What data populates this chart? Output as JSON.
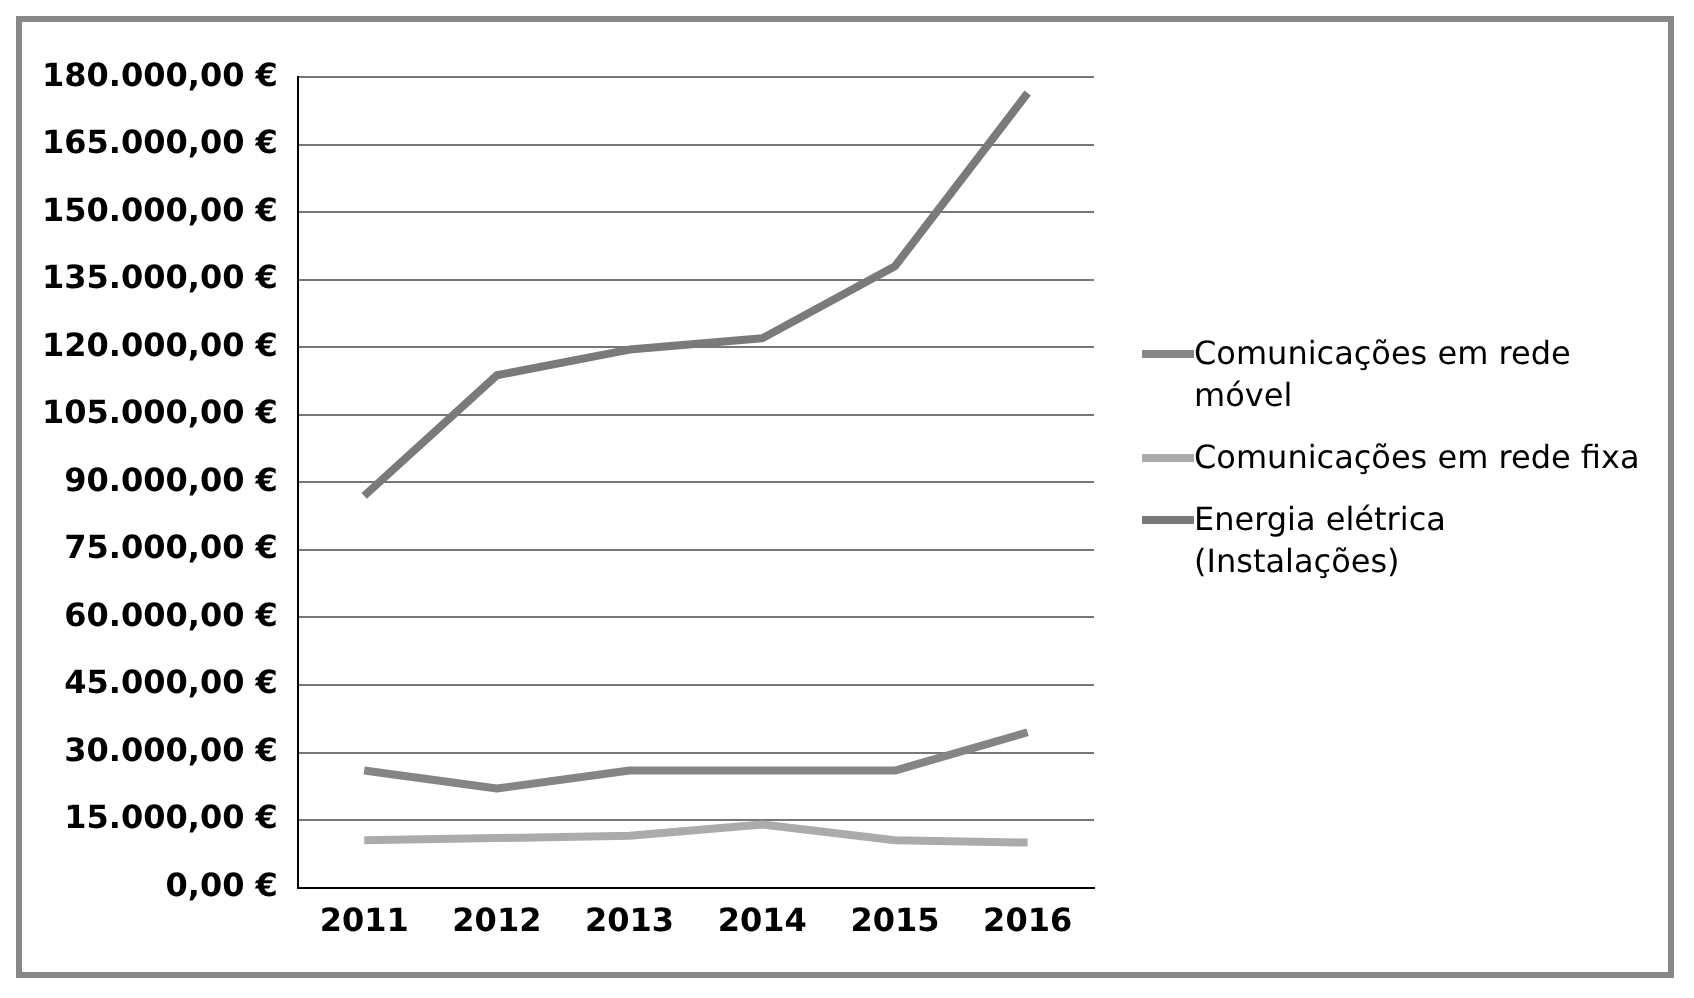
{
  "chart_data": {
    "type": "line",
    "categories": [
      "2011",
      "2012",
      "2013",
      "2014",
      "2015",
      "2016"
    ],
    "series": [
      {
        "name": "Comunicações em rede móvel",
        "color": "#858585",
        "values": [
          26000,
          22000,
          26000,
          26000,
          26000,
          34500
        ]
      },
      {
        "name": "Comunicações em rede fixa",
        "color": "#ababab",
        "values": [
          10500,
          11000,
          11500,
          14000,
          10500,
          10000
        ]
      },
      {
        "name": "Energia elétrica (Instalações)",
        "color": "#7a7a7a",
        "values": [
          87000,
          113800,
          119500,
          122000,
          138000,
          176500
        ]
      }
    ],
    "ylim": [
      0,
      180000
    ],
    "yticks": [
      {
        "value": 0,
        "label": "0,00 €"
      },
      {
        "value": 15000,
        "label": "15.000,00 €"
      },
      {
        "value": 30000,
        "label": "30.000,00 €"
      },
      {
        "value": 45000,
        "label": "45.000,00 €"
      },
      {
        "value": 60000,
        "label": "60.000,00 €"
      },
      {
        "value": 75000,
        "label": "75.000,00 €"
      },
      {
        "value": 90000,
        "label": "90.000,00 €"
      },
      {
        "value": 105000,
        "label": "105.000,00 €"
      },
      {
        "value": 120000,
        "label": "120.000,00 €"
      },
      {
        "value": 135000,
        "label": "135.000,00 €"
      },
      {
        "value": 150000,
        "label": "150.000,00 €"
      },
      {
        "value": 165000,
        "label": "165.000,00 €"
      },
      {
        "value": 180000,
        "label": "180.000,00 €"
      }
    ],
    "grid": "y",
    "legend": "right",
    "marker": "none",
    "line_style": "solid"
  }
}
